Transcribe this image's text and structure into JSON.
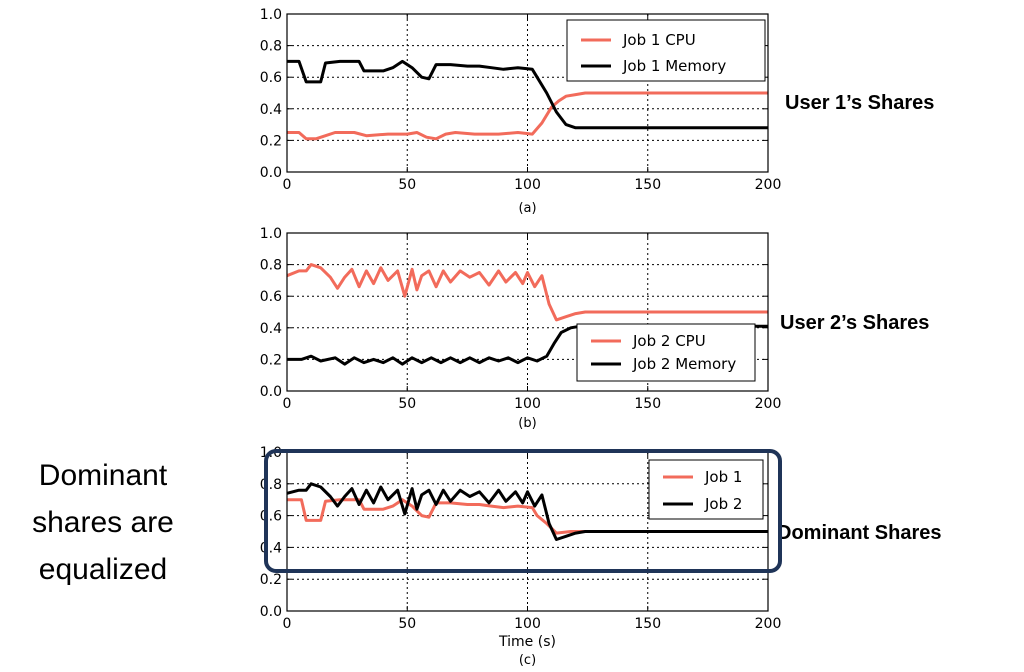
{
  "chart_data": [
    {
      "type": "line",
      "caption": "(a)",
      "side_label": "User 1’s Shares",
      "xlim": [
        0,
        200
      ],
      "ylim": [
        0,
        1
      ],
      "xticks": [
        0,
        50,
        100,
        150,
        200
      ],
      "yticks": [
        0.0,
        0.2,
        0.4,
        0.6,
        0.8,
        1.0
      ],
      "grid": true,
      "xlabel": "",
      "legend": "top-right",
      "series": [
        {
          "name": "Job 1 CPU",
          "color": "#f26b5b",
          "points": [
            [
              0,
              0.25
            ],
            [
              5,
              0.25
            ],
            [
              8,
              0.21
            ],
            [
              12,
              0.21
            ],
            [
              16,
              0.23
            ],
            [
              20,
              0.25
            ],
            [
              28,
              0.25
            ],
            [
              33,
              0.23
            ],
            [
              42,
              0.24
            ],
            [
              50,
              0.24
            ],
            [
              54,
              0.25
            ],
            [
              58,
              0.22
            ],
            [
              62,
              0.21
            ],
            [
              66,
              0.24
            ],
            [
              70,
              0.25
            ],
            [
              78,
              0.24
            ],
            [
              88,
              0.24
            ],
            [
              96,
              0.25
            ],
            [
              102,
              0.24
            ],
            [
              106,
              0.31
            ],
            [
              110,
              0.41
            ],
            [
              113,
              0.45
            ],
            [
              116,
              0.48
            ],
            [
              120,
              0.49
            ],
            [
              124,
              0.5
            ],
            [
              200,
              0.5
            ]
          ]
        },
        {
          "name": "Job 1 Memory",
          "color": "#000000",
          "points": [
            [
              0,
              0.7
            ],
            [
              5,
              0.7
            ],
            [
              8,
              0.57
            ],
            [
              14,
              0.57
            ],
            [
              16,
              0.69
            ],
            [
              22,
              0.7
            ],
            [
              30,
              0.7
            ],
            [
              32,
              0.64
            ],
            [
              40,
              0.64
            ],
            [
              44,
              0.66
            ],
            [
              48,
              0.7
            ],
            [
              52,
              0.66
            ],
            [
              56,
              0.6
            ],
            [
              59,
              0.59
            ],
            [
              62,
              0.68
            ],
            [
              68,
              0.68
            ],
            [
              75,
              0.67
            ],
            [
              80,
              0.67
            ],
            [
              85,
              0.66
            ],
            [
              90,
              0.65
            ],
            [
              96,
              0.66
            ],
            [
              102,
              0.65
            ],
            [
              104,
              0.6
            ],
            [
              108,
              0.5
            ],
            [
              112,
              0.38
            ],
            [
              116,
              0.3
            ],
            [
              120,
              0.28
            ],
            [
              200,
              0.28
            ]
          ]
        }
      ]
    },
    {
      "type": "line",
      "caption": "(b)",
      "side_label": "User 2’s Shares",
      "xlim": [
        0,
        200
      ],
      "ylim": [
        0,
        1
      ],
      "xticks": [
        0,
        50,
        100,
        150,
        200
      ],
      "yticks": [
        0.0,
        0.2,
        0.4,
        0.6,
        0.8,
        1.0
      ],
      "grid": true,
      "xlabel": "",
      "legend": "bottom-right",
      "series": [
        {
          "name": "Job 2 CPU",
          "color": "#f26b5b",
          "points": [
            [
              0,
              0.73
            ],
            [
              5,
              0.76
            ],
            [
              8,
              0.76
            ],
            [
              10,
              0.8
            ],
            [
              14,
              0.78
            ],
            [
              18,
              0.72
            ],
            [
              21,
              0.65
            ],
            [
              24,
              0.72
            ],
            [
              27,
              0.77
            ],
            [
              30,
              0.66
            ],
            [
              33,
              0.76
            ],
            [
              36,
              0.68
            ],
            [
              39,
              0.78
            ],
            [
              42,
              0.7
            ],
            [
              46,
              0.76
            ],
            [
              49,
              0.6
            ],
            [
              52,
              0.77
            ],
            [
              54,
              0.64
            ],
            [
              56,
              0.73
            ],
            [
              59,
              0.76
            ],
            [
              62,
              0.66
            ],
            [
              65,
              0.76
            ],
            [
              68,
              0.69
            ],
            [
              72,
              0.76
            ],
            [
              76,
              0.72
            ],
            [
              80,
              0.75
            ],
            [
              84,
              0.67
            ],
            [
              88,
              0.76
            ],
            [
              91,
              0.69
            ],
            [
              95,
              0.75
            ],
            [
              98,
              0.68
            ],
            [
              100,
              0.75
            ],
            [
              103,
              0.66
            ],
            [
              106,
              0.73
            ],
            [
              109,
              0.55
            ],
            [
              112,
              0.45
            ],
            [
              116,
              0.47
            ],
            [
              120,
              0.49
            ],
            [
              124,
              0.5
            ],
            [
              200,
              0.5
            ]
          ]
        },
        {
          "name": "Job 2 Memory",
          "color": "#000000",
          "points": [
            [
              0,
              0.2
            ],
            [
              6,
              0.2
            ],
            [
              10,
              0.22
            ],
            [
              14,
              0.19
            ],
            [
              20,
              0.21
            ],
            [
              24,
              0.17
            ],
            [
              28,
              0.21
            ],
            [
              32,
              0.18
            ],
            [
              36,
              0.2
            ],
            [
              40,
              0.18
            ],
            [
              44,
              0.21
            ],
            [
              48,
              0.17
            ],
            [
              52,
              0.21
            ],
            [
              56,
              0.18
            ],
            [
              60,
              0.21
            ],
            [
              64,
              0.18
            ],
            [
              68,
              0.21
            ],
            [
              72,
              0.18
            ],
            [
              76,
              0.21
            ],
            [
              80,
              0.18
            ],
            [
              84,
              0.21
            ],
            [
              88,
              0.19
            ],
            [
              92,
              0.21
            ],
            [
              96,
              0.18
            ],
            [
              100,
              0.21
            ],
            [
              104,
              0.19
            ],
            [
              108,
              0.22
            ],
            [
              111,
              0.3
            ],
            [
              114,
              0.37
            ],
            [
              118,
              0.4
            ],
            [
              122,
              0.41
            ],
            [
              200,
              0.41
            ]
          ]
        }
      ]
    },
    {
      "type": "line",
      "caption": "(c)",
      "side_label": "Dominant Shares",
      "xlim": [
        0,
        200
      ],
      "ylim": [
        0,
        1
      ],
      "xticks": [
        0,
        50,
        100,
        150,
        200
      ],
      "yticks": [
        0.0,
        0.2,
        0.4,
        0.6,
        0.8,
        1.0
      ],
      "grid": true,
      "xlabel": "Time (s)",
      "legend": "top-right",
      "series": [
        {
          "name": "Job 1",
          "color": "#f26b5b",
          "points": [
            [
              0,
              0.7
            ],
            [
              6,
              0.7
            ],
            [
              8,
              0.57
            ],
            [
              14,
              0.57
            ],
            [
              16,
              0.69
            ],
            [
              22,
              0.7
            ],
            [
              30,
              0.7
            ],
            [
              32,
              0.64
            ],
            [
              40,
              0.64
            ],
            [
              44,
              0.66
            ],
            [
              48,
              0.7
            ],
            [
              52,
              0.66
            ],
            [
              56,
              0.6
            ],
            [
              59,
              0.59
            ],
            [
              62,
              0.68
            ],
            [
              68,
              0.68
            ],
            [
              75,
              0.67
            ],
            [
              80,
              0.67
            ],
            [
              85,
              0.66
            ],
            [
              90,
              0.65
            ],
            [
              96,
              0.66
            ],
            [
              102,
              0.65
            ],
            [
              104,
              0.6
            ],
            [
              108,
              0.55
            ],
            [
              112,
              0.49
            ],
            [
              118,
              0.5
            ],
            [
              124,
              0.5
            ],
            [
              200,
              0.5
            ]
          ]
        },
        {
          "name": "Job 2",
          "color": "#000000",
          "points": [
            [
              0,
              0.74
            ],
            [
              5,
              0.76
            ],
            [
              8,
              0.76
            ],
            [
              10,
              0.8
            ],
            [
              14,
              0.78
            ],
            [
              18,
              0.72
            ],
            [
              21,
              0.66
            ],
            [
              24,
              0.72
            ],
            [
              27,
              0.77
            ],
            [
              30,
              0.67
            ],
            [
              33,
              0.76
            ],
            [
              36,
              0.68
            ],
            [
              39,
              0.78
            ],
            [
              42,
              0.7
            ],
            [
              46,
              0.76
            ],
            [
              49,
              0.61
            ],
            [
              52,
              0.77
            ],
            [
              54,
              0.64
            ],
            [
              56,
              0.73
            ],
            [
              59,
              0.76
            ],
            [
              62,
              0.67
            ],
            [
              65,
              0.76
            ],
            [
              68,
              0.69
            ],
            [
              72,
              0.76
            ],
            [
              76,
              0.72
            ],
            [
              80,
              0.75
            ],
            [
              84,
              0.68
            ],
            [
              88,
              0.76
            ],
            [
              91,
              0.69
            ],
            [
              95,
              0.75
            ],
            [
              98,
              0.68
            ],
            [
              100,
              0.75
            ],
            [
              103,
              0.66
            ],
            [
              106,
              0.73
            ],
            [
              109,
              0.55
            ],
            [
              112,
              0.45
            ],
            [
              116,
              0.47
            ],
            [
              120,
              0.49
            ],
            [
              124,
              0.5
            ],
            [
              200,
              0.5
            ]
          ]
        }
      ]
    }
  ],
  "annotation": {
    "text_lines": [
      "Dominant",
      "shares are",
      "equalized"
    ],
    "highlight_color": "#1f3458"
  }
}
